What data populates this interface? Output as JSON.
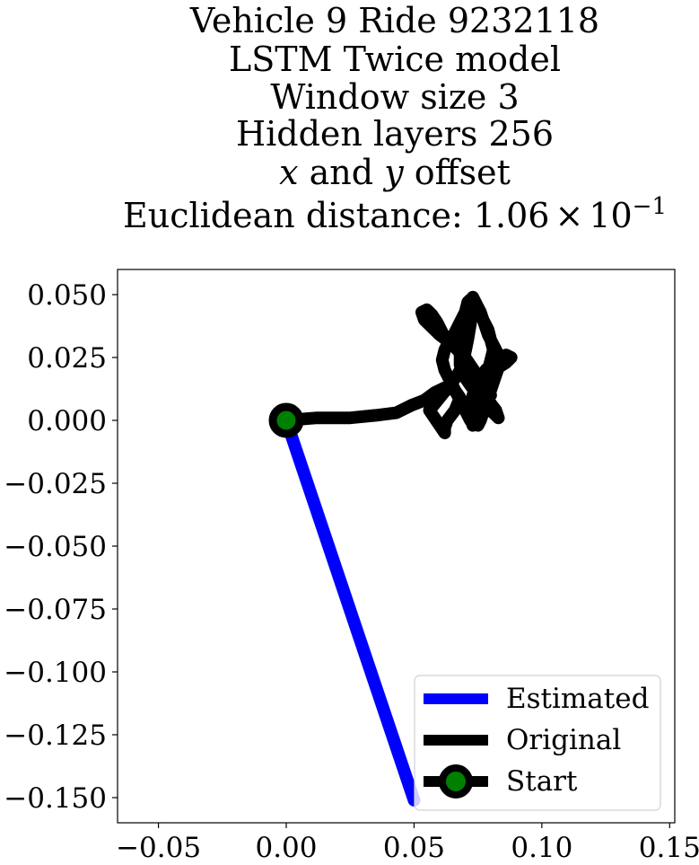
{
  "chart_data": {
    "type": "line",
    "title_lines": [
      "Vehicle 9 Ride 9232118",
      "LSTM Twice model",
      "Window size 3",
      "Hidden layers 256",
      "x and y offset"
    ],
    "title_metric": {
      "prefix": "Euclidean distance: ",
      "mantissa": "1.06",
      "times": "×",
      "base": "10",
      "exponent": "−1"
    },
    "title_italic_words": {
      "x": "x",
      "and": " and ",
      "y": "y",
      "rest": " offset"
    },
    "xlabel": "",
    "ylabel": "",
    "xlim": [
      -0.066,
      0.152
    ],
    "ylim": [
      -0.16,
      0.06
    ],
    "x_ticks": [
      {
        "value": -0.05,
        "label": "−0.05"
      },
      {
        "value": 0.0,
        "label": "0.00"
      },
      {
        "value": 0.05,
        "label": "0.05"
      },
      {
        "value": 0.1,
        "label": "0.10"
      },
      {
        "value": 0.15,
        "label": "0.15"
      }
    ],
    "y_ticks": [
      {
        "value": 0.05,
        "label": "0.050"
      },
      {
        "value": 0.025,
        "label": "0.025"
      },
      {
        "value": 0.0,
        "label": "0.000"
      },
      {
        "value": -0.025,
        "label": "−0.025"
      },
      {
        "value": -0.05,
        "label": "−0.050"
      },
      {
        "value": -0.075,
        "label": "−0.075"
      },
      {
        "value": -0.1,
        "label": "−0.100"
      },
      {
        "value": -0.125,
        "label": "−0.125"
      },
      {
        "value": -0.15,
        "label": "−0.150"
      }
    ],
    "grid": false,
    "legend_position": "bottom-right",
    "series": [
      {
        "name": "Estimated",
        "color": "#0000ff",
        "x": [
          0.0,
          0.05
        ],
        "y": [
          0.0,
          -0.151
        ]
      },
      {
        "name": "Original",
        "color": "#000000",
        "x": [
          0.0,
          0.012,
          0.025,
          0.035,
          0.043,
          0.049,
          0.054,
          0.058,
          0.062,
          0.066,
          0.068,
          0.066,
          0.063,
          0.062,
          0.062,
          0.06,
          0.058,
          0.056,
          0.06,
          0.064,
          0.067,
          0.069,
          0.07,
          0.071,
          0.072,
          0.073,
          0.072,
          0.071,
          0.07,
          0.069,
          0.068,
          0.067,
          0.067,
          0.068,
          0.068,
          0.07,
          0.072,
          0.075,
          0.078,
          0.081,
          0.083,
          0.082,
          0.079,
          0.075,
          0.072,
          0.07,
          0.069,
          0.068,
          0.068,
          0.069,
          0.071,
          0.073,
          0.075,
          0.077,
          0.079,
          0.08,
          0.081,
          0.08,
          0.079,
          0.078,
          0.077,
          0.076,
          0.075,
          0.074,
          0.073,
          0.072,
          0.072,
          0.073,
          0.075,
          0.078,
          0.081,
          0.084,
          0.086,
          0.088,
          0.086,
          0.083,
          0.08,
          0.078,
          0.076,
          0.075,
          0.074,
          0.073,
          0.073,
          0.074,
          0.075,
          0.076,
          0.077,
          0.078,
          0.079,
          0.08,
          0.081,
          0.082,
          0.083,
          0.084,
          0.083,
          0.082,
          0.081,
          0.08,
          0.079,
          0.078,
          0.077,
          0.076,
          0.075,
          0.074,
          0.073,
          0.072,
          0.071,
          0.07,
          0.069,
          0.068,
          0.067,
          0.066,
          0.065,
          0.063,
          0.061,
          0.059,
          0.057,
          0.055,
          0.053,
          0.054,
          0.057,
          0.06,
          0.064,
          0.067,
          0.07,
          0.072,
          0.074,
          0.076,
          0.078,
          0.08,
          0.078,
          0.076,
          0.074,
          0.072,
          0.07,
          0.068,
          0.066,
          0.064,
          0.062,
          0.061,
          0.062,
          0.064,
          0.067,
          0.07,
          0.073
        ],
        "y": [
          0.0,
          0.001,
          0.001,
          0.002,
          0.003,
          0.006,
          0.008,
          0.011,
          0.013,
          0.012,
          0.009,
          0.004,
          0.0,
          -0.003,
          -0.005,
          -0.002,
          0.001,
          0.004,
          0.009,
          0.014,
          0.018,
          0.022,
          0.027,
          0.032,
          0.038,
          0.044,
          0.048,
          0.047,
          0.043,
          0.039,
          0.036,
          0.033,
          0.03,
          0.026,
          0.022,
          0.018,
          0.014,
          0.01,
          0.006,
          0.003,
          0.001,
          0.004,
          0.008,
          0.011,
          0.014,
          0.017,
          0.021,
          0.025,
          0.03,
          0.034,
          0.038,
          0.041,
          0.043,
          0.04,
          0.036,
          0.032,
          0.028,
          0.024,
          0.02,
          0.016,
          0.012,
          0.008,
          0.004,
          0.0,
          -0.002,
          0.001,
          0.005,
          0.01,
          0.015,
          0.02,
          0.023,
          0.025,
          0.026,
          0.025,
          0.023,
          0.021,
          0.019,
          0.017,
          0.015,
          0.012,
          0.009,
          0.006,
          0.003,
          0.0,
          -0.002,
          0.0,
          0.003,
          0.006,
          0.009,
          0.012,
          0.015,
          0.018,
          0.021,
          0.024,
          0.026,
          0.028,
          0.03,
          0.032,
          0.034,
          0.037,
          0.04,
          0.043,
          0.045,
          0.047,
          0.049,
          0.047,
          0.045,
          0.043,
          0.041,
          0.039,
          0.037,
          0.035,
          0.033,
          0.031,
          0.035,
          0.039,
          0.042,
          0.044,
          0.043,
          0.04,
          0.037,
          0.034,
          0.031,
          0.028,
          0.025,
          0.022,
          0.019,
          0.016,
          0.013,
          0.01,
          0.007,
          0.004,
          0.001,
          0.0,
          0.004,
          0.008,
          0.012,
          0.016,
          0.02,
          0.024,
          0.028,
          0.032,
          0.028,
          0.024,
          0.02
        ]
      },
      {
        "name": "Start",
        "color": "#000000",
        "marker_face": "#008000",
        "x": [
          0.0
        ],
        "y": [
          0.0
        ]
      }
    ]
  }
}
